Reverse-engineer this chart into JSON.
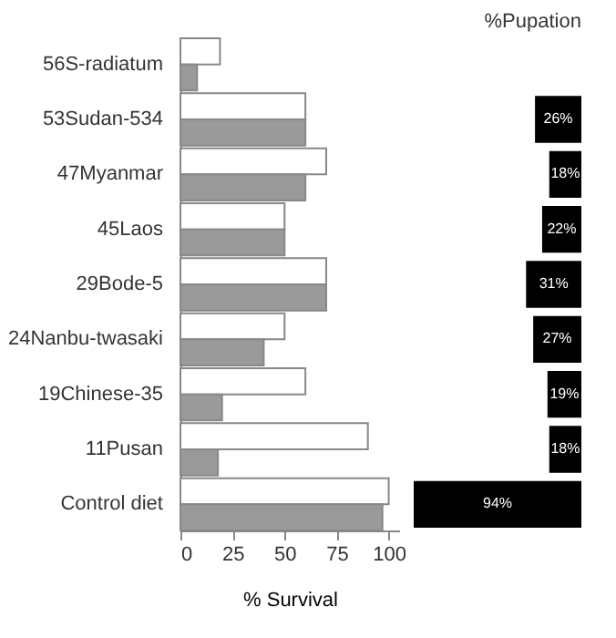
{
  "chart_data": [
    {
      "type": "bar",
      "orientation": "horizontal",
      "xlabel": "% Survival",
      "categories": [
        "56S-radiatum",
        "53Sudan-534",
        "47Myanmar",
        "45Laos",
        "29Bode-5",
        "24Nanbu-twasaki",
        "19Chinese-35",
        "11Pusan",
        "Control diet"
      ],
      "series": [
        {
          "color": "#ffffff",
          "values": [
            19,
            60,
            70,
            50,
            70,
            50,
            60,
            90,
            100
          ]
        },
        {
          "color": "#9a9a9a",
          "values": [
            8,
            60,
            60,
            50,
            70,
            40,
            20,
            18,
            97
          ]
        }
      ],
      "xlim": [
        0,
        105
      ],
      "xticks": [
        0,
        25,
        50,
        75,
        100
      ],
      "grid": false
    },
    {
      "type": "bar",
      "orientation": "horizontal",
      "title": "%Pupation",
      "categories": [
        null,
        null,
        null,
        null,
        null,
        null,
        null,
        null,
        null
      ],
      "values": [
        null,
        26,
        18,
        22,
        31,
        27,
        19,
        18,
        94
      ],
      "value_labels": [
        null,
        "26%",
        "18%",
        "22%",
        "31%",
        "27%",
        "19%",
        "18%",
        "94%"
      ],
      "color": "#000000",
      "tick_labels": false
    }
  ]
}
